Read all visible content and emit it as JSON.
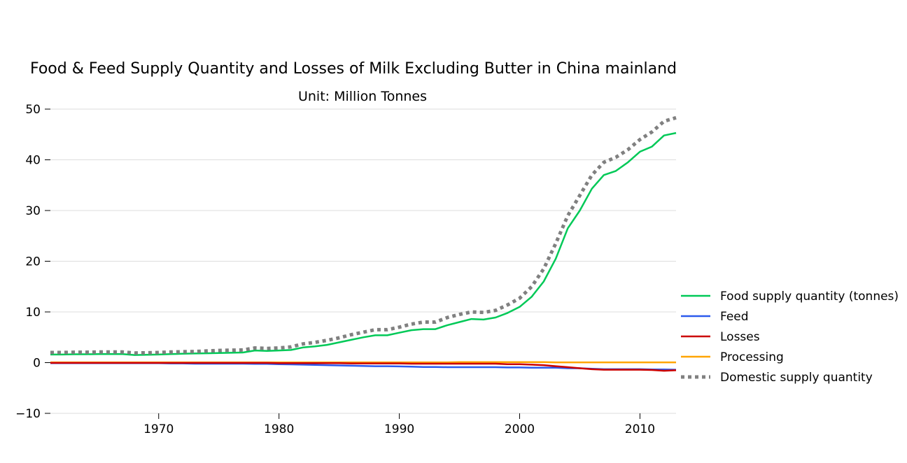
{
  "chart_data": {
    "type": "line",
    "title": "Food & Feed Supply Quantity and Losses of Milk Excluding Butter in China mainland",
    "subtitle": "Unit: Million Tonnes",
    "xlabel": "",
    "ylabel": "",
    "xlim": [
      1961,
      2013
    ],
    "ylim": [
      -10,
      50
    ],
    "xticks": [
      1970,
      1980,
      1990,
      2000,
      2010
    ],
    "yticks": [
      -10,
      0,
      10,
      20,
      30,
      40,
      50
    ],
    "grid": true,
    "legend_position": "right",
    "x": [
      1961,
      1962,
      1963,
      1964,
      1965,
      1966,
      1967,
      1968,
      1969,
      1970,
      1971,
      1972,
      1973,
      1974,
      1975,
      1976,
      1977,
      1978,
      1979,
      1980,
      1981,
      1982,
      1983,
      1984,
      1985,
      1986,
      1987,
      1988,
      1989,
      1990,
      1991,
      1992,
      1993,
      1994,
      1995,
      1996,
      1997,
      1998,
      1999,
      2000,
      2001,
      2002,
      2003,
      2004,
      2005,
      2006,
      2007,
      2008,
      2009,
      2010,
      2011,
      2012,
      2013
    ],
    "series": [
      {
        "name": "Food supply quantity (tonnes)",
        "color": "#00c957",
        "style": "solid",
        "values": [
          1.6,
          1.6,
          1.65,
          1.65,
          1.7,
          1.7,
          1.7,
          1.5,
          1.55,
          1.6,
          1.7,
          1.75,
          1.8,
          1.85,
          1.9,
          1.95,
          2.0,
          2.4,
          2.3,
          2.4,
          2.5,
          3.0,
          3.2,
          3.5,
          4.0,
          4.5,
          5.0,
          5.4,
          5.4,
          5.9,
          6.4,
          6.6,
          6.6,
          7.4,
          8.0,
          8.6,
          8.5,
          8.9,
          9.8,
          11.0,
          13.0,
          16.0,
          20.5,
          26.5,
          30.0,
          34.3,
          37.0,
          37.8,
          39.5,
          41.6,
          42.6,
          44.8,
          45.3
        ]
      },
      {
        "name": "Feed",
        "color": "#2c5aed",
        "style": "solid",
        "values": [
          -0.1,
          -0.1,
          -0.1,
          -0.1,
          -0.1,
          -0.1,
          -0.1,
          -0.1,
          -0.1,
          -0.1,
          -0.15,
          -0.15,
          -0.2,
          -0.2,
          -0.2,
          -0.2,
          -0.2,
          -0.25,
          -0.25,
          -0.3,
          -0.35,
          -0.4,
          -0.45,
          -0.5,
          -0.55,
          -0.6,
          -0.65,
          -0.7,
          -0.7,
          -0.75,
          -0.8,
          -0.85,
          -0.85,
          -0.9,
          -0.9,
          -0.9,
          -0.9,
          -0.9,
          -0.95,
          -0.95,
          -1.0,
          -1.0,
          -1.0,
          -1.1,
          -1.1,
          -1.2,
          -1.3,
          -1.3,
          -1.3,
          -1.3,
          -1.35,
          -1.35,
          -1.4
        ]
      },
      {
        "name": "Losses",
        "color": "#cc0000",
        "style": "solid",
        "values": [
          -0.05,
          -0.05,
          -0.05,
          -0.05,
          -0.05,
          -0.05,
          -0.05,
          -0.05,
          -0.05,
          -0.05,
          -0.05,
          -0.05,
          -0.05,
          -0.05,
          -0.05,
          -0.05,
          -0.05,
          -0.05,
          -0.05,
          -0.1,
          -0.1,
          -0.1,
          -0.1,
          -0.1,
          -0.1,
          -0.15,
          -0.15,
          -0.15,
          -0.15,
          -0.15,
          -0.2,
          -0.2,
          -0.2,
          -0.2,
          -0.2,
          -0.2,
          -0.2,
          -0.2,
          -0.3,
          -0.3,
          -0.4,
          -0.5,
          -0.7,
          -0.9,
          -1.1,
          -1.3,
          -1.4,
          -1.4,
          -1.4,
          -1.4,
          -1.45,
          -1.6,
          -1.5
        ]
      },
      {
        "name": "Processing",
        "color": "#ffa500",
        "style": "solid",
        "values": [
          0.05,
          0.05,
          0.05,
          0.05,
          0.05,
          0.05,
          0.05,
          0.05,
          0.05,
          0.05,
          0.05,
          0.05,
          0.05,
          0.05,
          0.05,
          0.05,
          0.05,
          0.05,
          0.05,
          0.05,
          0.05,
          0.05,
          0.05,
          0.05,
          0.05,
          0.05,
          0.05,
          0.05,
          0.05,
          0.05,
          0.05,
          0.05,
          0.05,
          0.05,
          0.1,
          0.1,
          0.1,
          0.1,
          0.1,
          0.1,
          0.1,
          0.1,
          0.05,
          0.05,
          0.05,
          0.05,
          0.05,
          0.05,
          0.05,
          0.05,
          0.05,
          0.05,
          0.05
        ]
      },
      {
        "name": "Domestic supply quantity",
        "color": "#808080",
        "style": "dotted",
        "values": [
          2.0,
          2.0,
          2.05,
          2.05,
          2.1,
          2.1,
          2.1,
          1.9,
          1.95,
          2.0,
          2.1,
          2.15,
          2.2,
          2.3,
          2.4,
          2.45,
          2.5,
          2.9,
          2.8,
          2.9,
          3.1,
          3.7,
          4.0,
          4.4,
          4.9,
          5.5,
          6.0,
          6.5,
          6.5,
          7.0,
          7.6,
          8.0,
          8.0,
          8.9,
          9.5,
          10.0,
          9.9,
          10.3,
          11.4,
          12.7,
          15.0,
          18.5,
          23.5,
          29.0,
          33.0,
          37.0,
          39.5,
          40.5,
          42.0,
          44.0,
          45.5,
          47.6,
          48.3
        ]
      }
    ]
  }
}
